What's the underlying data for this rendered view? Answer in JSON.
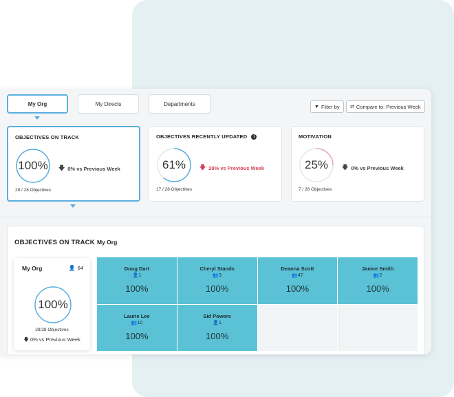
{
  "tabs": [
    {
      "label": "My Org",
      "active": true
    },
    {
      "label": "My Directs",
      "active": false
    },
    {
      "label": "Departments",
      "active": false
    }
  ],
  "toolbar": {
    "filter_label": "Filter by",
    "compare_label": "Compare to: Previous Week"
  },
  "cards": [
    {
      "title": "OBJECTIVES ON TRACK",
      "value": "100%",
      "progress": 1.0,
      "delta": "0% vs Previous Week",
      "sub": "28 / 28 Objectives",
      "ring_color": "#5aaee0"
    },
    {
      "title": "OBJECTIVES RECENTLY UPDATED",
      "value": "61%",
      "progress": 0.61,
      "delta": "29% vs Previous Week",
      "sub": "17 / 28 Objectives",
      "ring_color": "#5aaee0"
    },
    {
      "title": "MOTIVATION",
      "value": "25%",
      "progress": 0.25,
      "delta": "0% vs Previous Week",
      "sub": "7 / 28 Objectives",
      "ring_color": "#e9a3b4"
    }
  ],
  "detail": {
    "title": "OBJECTIVES ON TRACK",
    "scope": "My Org",
    "org": {
      "name": "My Org",
      "count": "64",
      "value": "100%",
      "objectives": "28/28 Objectives",
      "delta": "0% vs Previous Week"
    },
    "people": [
      {
        "name": "Doug Dart",
        "count": "1",
        "value": "100%"
      },
      {
        "name": "Cheryl Stands",
        "count": "3",
        "value": "100%"
      },
      {
        "name": "Deanna Scott",
        "count": "47",
        "value": "100%"
      },
      {
        "name": "Janice Smith",
        "count": "2",
        "value": "100%"
      },
      {
        "name": "Laurie Lee",
        "count": "10",
        "value": "100%"
      },
      {
        "name": "Sid Powers",
        "count": "1",
        "value": "100%"
      }
    ]
  },
  "colors": {
    "accent": "#5aaee0",
    "tile": "#5bc2d6",
    "negative": "#d9405a",
    "background_panel": "#e5f0f3"
  }
}
